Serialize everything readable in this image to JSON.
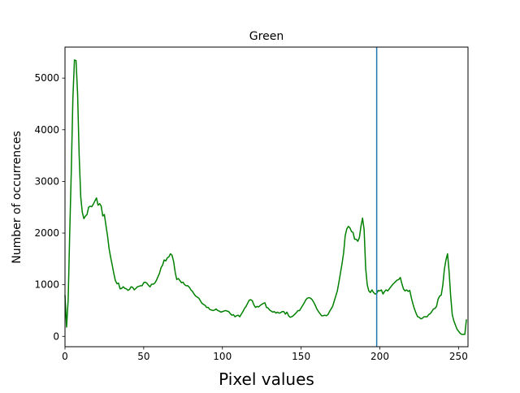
{
  "chart_data": {
    "type": "line",
    "title": "Green",
    "xlabel": "Pixel values",
    "ylabel": "Number of occurrences",
    "xlim": [
      0,
      256
    ],
    "ylim": [
      -200,
      5600
    ],
    "xticks": [
      0,
      50,
      100,
      150,
      200,
      250
    ],
    "yticks": [
      0,
      1000,
      2000,
      3000,
      4000,
      5000
    ],
    "xtick_labels": [
      "0",
      "50",
      "100",
      "150",
      "200",
      "250"
    ],
    "ytick_labels": [
      "0",
      "1000",
      "2000",
      "3000",
      "4000",
      "5000"
    ],
    "grid": false,
    "series": [
      {
        "color": "#008000",
        "points": [
          [
            0,
            800
          ],
          [
            1,
            180
          ],
          [
            2,
            700
          ],
          [
            3,
            2000
          ],
          [
            4,
            3200
          ],
          [
            5,
            4600
          ],
          [
            6,
            5350
          ],
          [
            7,
            5340
          ],
          [
            8,
            4700
          ],
          [
            9,
            3500
          ],
          [
            10,
            2700
          ],
          [
            11,
            2400
          ],
          [
            12,
            2280
          ],
          [
            13,
            2330
          ],
          [
            14,
            2360
          ],
          [
            15,
            2500
          ],
          [
            16,
            2520
          ],
          [
            17,
            2510
          ],
          [
            18,
            2560
          ],
          [
            19,
            2620
          ],
          [
            20,
            2680
          ],
          [
            21,
            2540
          ],
          [
            22,
            2570
          ],
          [
            23,
            2520
          ],
          [
            24,
            2330
          ],
          [
            25,
            2360
          ],
          [
            26,
            2150
          ],
          [
            27,
            1950
          ],
          [
            28,
            1700
          ],
          [
            29,
            1530
          ],
          [
            30,
            1380
          ],
          [
            31,
            1220
          ],
          [
            32,
            1080
          ],
          [
            33,
            1020
          ],
          [
            34,
            1030
          ],
          [
            35,
            920
          ],
          [
            36,
            930
          ],
          [
            37,
            960
          ],
          [
            38,
            930
          ],
          [
            39,
            920
          ],
          [
            40,
            890
          ],
          [
            41,
            910
          ],
          [
            42,
            960
          ],
          [
            43,
            950
          ],
          [
            44,
            900
          ],
          [
            45,
            930
          ],
          [
            46,
            960
          ],
          [
            47,
            970
          ],
          [
            48,
            980
          ],
          [
            49,
            980
          ],
          [
            50,
            1040
          ],
          [
            51,
            1050
          ],
          [
            52,
            1030
          ],
          [
            53,
            990
          ],
          [
            54,
            960
          ],
          [
            55,
            1010
          ],
          [
            56,
            1010
          ],
          [
            57,
            1030
          ],
          [
            58,
            1080
          ],
          [
            59,
            1150
          ],
          [
            60,
            1220
          ],
          [
            61,
            1330
          ],
          [
            62,
            1380
          ],
          [
            63,
            1480
          ],
          [
            64,
            1460
          ],
          [
            65,
            1520
          ],
          [
            66,
            1540
          ],
          [
            67,
            1600
          ],
          [
            68,
            1570
          ],
          [
            69,
            1450
          ],
          [
            70,
            1240
          ],
          [
            71,
            1100
          ],
          [
            72,
            1120
          ],
          [
            73,
            1080
          ],
          [
            74,
            1040
          ],
          [
            75,
            1050
          ],
          [
            76,
            1000
          ],
          [
            77,
            980
          ],
          [
            78,
            980
          ],
          [
            79,
            950
          ],
          [
            80,
            900
          ],
          [
            81,
            870
          ],
          [
            82,
            820
          ],
          [
            83,
            780
          ],
          [
            84,
            760
          ],
          [
            85,
            740
          ],
          [
            86,
            690
          ],
          [
            87,
            640
          ],
          [
            88,
            620
          ],
          [
            89,
            600
          ],
          [
            90,
            560
          ],
          [
            91,
            560
          ],
          [
            92,
            520
          ],
          [
            93,
            510
          ],
          [
            94,
            500
          ],
          [
            95,
            510
          ],
          [
            96,
            530
          ],
          [
            97,
            500
          ],
          [
            98,
            490
          ],
          [
            99,
            470
          ],
          [
            100,
            480
          ],
          [
            101,
            490
          ],
          [
            102,
            500
          ],
          [
            103,
            490
          ],
          [
            104,
            480
          ],
          [
            105,
            440
          ],
          [
            106,
            410
          ],
          [
            107,
            420
          ],
          [
            108,
            380
          ],
          [
            109,
            400
          ],
          [
            110,
            410
          ],
          [
            111,
            380
          ],
          [
            112,
            430
          ],
          [
            113,
            480
          ],
          [
            114,
            540
          ],
          [
            115,
            580
          ],
          [
            116,
            640
          ],
          [
            117,
            700
          ],
          [
            118,
            710
          ],
          [
            119,
            690
          ],
          [
            120,
            610
          ],
          [
            121,
            560
          ],
          [
            122,
            580
          ],
          [
            123,
            570
          ],
          [
            124,
            600
          ],
          [
            125,
            620
          ],
          [
            126,
            640
          ],
          [
            127,
            650
          ],
          [
            128,
            560
          ],
          [
            129,
            550
          ],
          [
            130,
            510
          ],
          [
            131,
            490
          ],
          [
            132,
            470
          ],
          [
            133,
            480
          ],
          [
            134,
            450
          ],
          [
            135,
            470
          ],
          [
            136,
            450
          ],
          [
            137,
            460
          ],
          [
            138,
            480
          ],
          [
            139,
            480
          ],
          [
            140,
            430
          ],
          [
            141,
            470
          ],
          [
            142,
            400
          ],
          [
            143,
            370
          ],
          [
            144,
            380
          ],
          [
            145,
            400
          ],
          [
            146,
            430
          ],
          [
            147,
            460
          ],
          [
            148,
            500
          ],
          [
            149,
            500
          ],
          [
            150,
            550
          ],
          [
            151,
            600
          ],
          [
            152,
            650
          ],
          [
            153,
            710
          ],
          [
            154,
            740
          ],
          [
            155,
            750
          ],
          [
            156,
            740
          ],
          [
            157,
            710
          ],
          [
            158,
            660
          ],
          [
            159,
            600
          ],
          [
            160,
            530
          ],
          [
            161,
            480
          ],
          [
            162,
            440
          ],
          [
            163,
            400
          ],
          [
            164,
            400
          ],
          [
            165,
            410
          ],
          [
            166,
            400
          ],
          [
            167,
            420
          ],
          [
            168,
            480
          ],
          [
            169,
            530
          ],
          [
            170,
            580
          ],
          [
            171,
            680
          ],
          [
            172,
            780
          ],
          [
            173,
            880
          ],
          [
            174,
            1050
          ],
          [
            175,
            1230
          ],
          [
            176,
            1410
          ],
          [
            177,
            1620
          ],
          [
            178,
            1950
          ],
          [
            179,
            2080
          ],
          [
            180,
            2130
          ],
          [
            181,
            2100
          ],
          [
            182,
            2030
          ],
          [
            183,
            2010
          ],
          [
            184,
            1880
          ],
          [
            185,
            1880
          ],
          [
            186,
            1840
          ],
          [
            187,
            1910
          ],
          [
            188,
            2130
          ],
          [
            189,
            2290
          ],
          [
            190,
            2070
          ],
          [
            191,
            1320
          ],
          [
            192,
            1000
          ],
          [
            193,
            880
          ],
          [
            194,
            850
          ],
          [
            195,
            900
          ],
          [
            196,
            850
          ],
          [
            197,
            820
          ],
          [
            198,
            830
          ],
          [
            199,
            890
          ],
          [
            200,
            880
          ],
          [
            201,
            900
          ],
          [
            202,
            820
          ],
          [
            203,
            870
          ],
          [
            204,
            900
          ],
          [
            205,
            880
          ],
          [
            206,
            920
          ],
          [
            207,
            960
          ],
          [
            208,
            1000
          ],
          [
            209,
            1030
          ],
          [
            210,
            1060
          ],
          [
            211,
            1090
          ],
          [
            212,
            1100
          ],
          [
            213,
            1140
          ],
          [
            214,
            1020
          ],
          [
            215,
            920
          ],
          [
            216,
            880
          ],
          [
            217,
            900
          ],
          [
            218,
            870
          ],
          [
            219,
            890
          ],
          [
            220,
            750
          ],
          [
            221,
            630
          ],
          [
            222,
            530
          ],
          [
            223,
            450
          ],
          [
            224,
            380
          ],
          [
            225,
            370
          ],
          [
            226,
            340
          ],
          [
            227,
            350
          ],
          [
            228,
            380
          ],
          [
            229,
            380
          ],
          [
            230,
            380
          ],
          [
            231,
            420
          ],
          [
            232,
            440
          ],
          [
            233,
            480
          ],
          [
            234,
            530
          ],
          [
            235,
            540
          ],
          [
            236,
            580
          ],
          [
            237,
            720
          ],
          [
            238,
            780
          ],
          [
            239,
            800
          ],
          [
            240,
            990
          ],
          [
            241,
            1300
          ],
          [
            242,
            1480
          ],
          [
            243,
            1600
          ],
          [
            244,
            1250
          ],
          [
            245,
            780
          ],
          [
            246,
            420
          ],
          [
            247,
            300
          ],
          [
            248,
            220
          ],
          [
            249,
            140
          ],
          [
            250,
            100
          ],
          [
            251,
            60
          ],
          [
            252,
            40
          ],
          [
            253,
            40
          ],
          [
            254,
            40
          ],
          [
            255,
            330
          ]
        ]
      }
    ],
    "vlines": [
      {
        "x": 198,
        "color": "#1f77b4"
      }
    ]
  }
}
